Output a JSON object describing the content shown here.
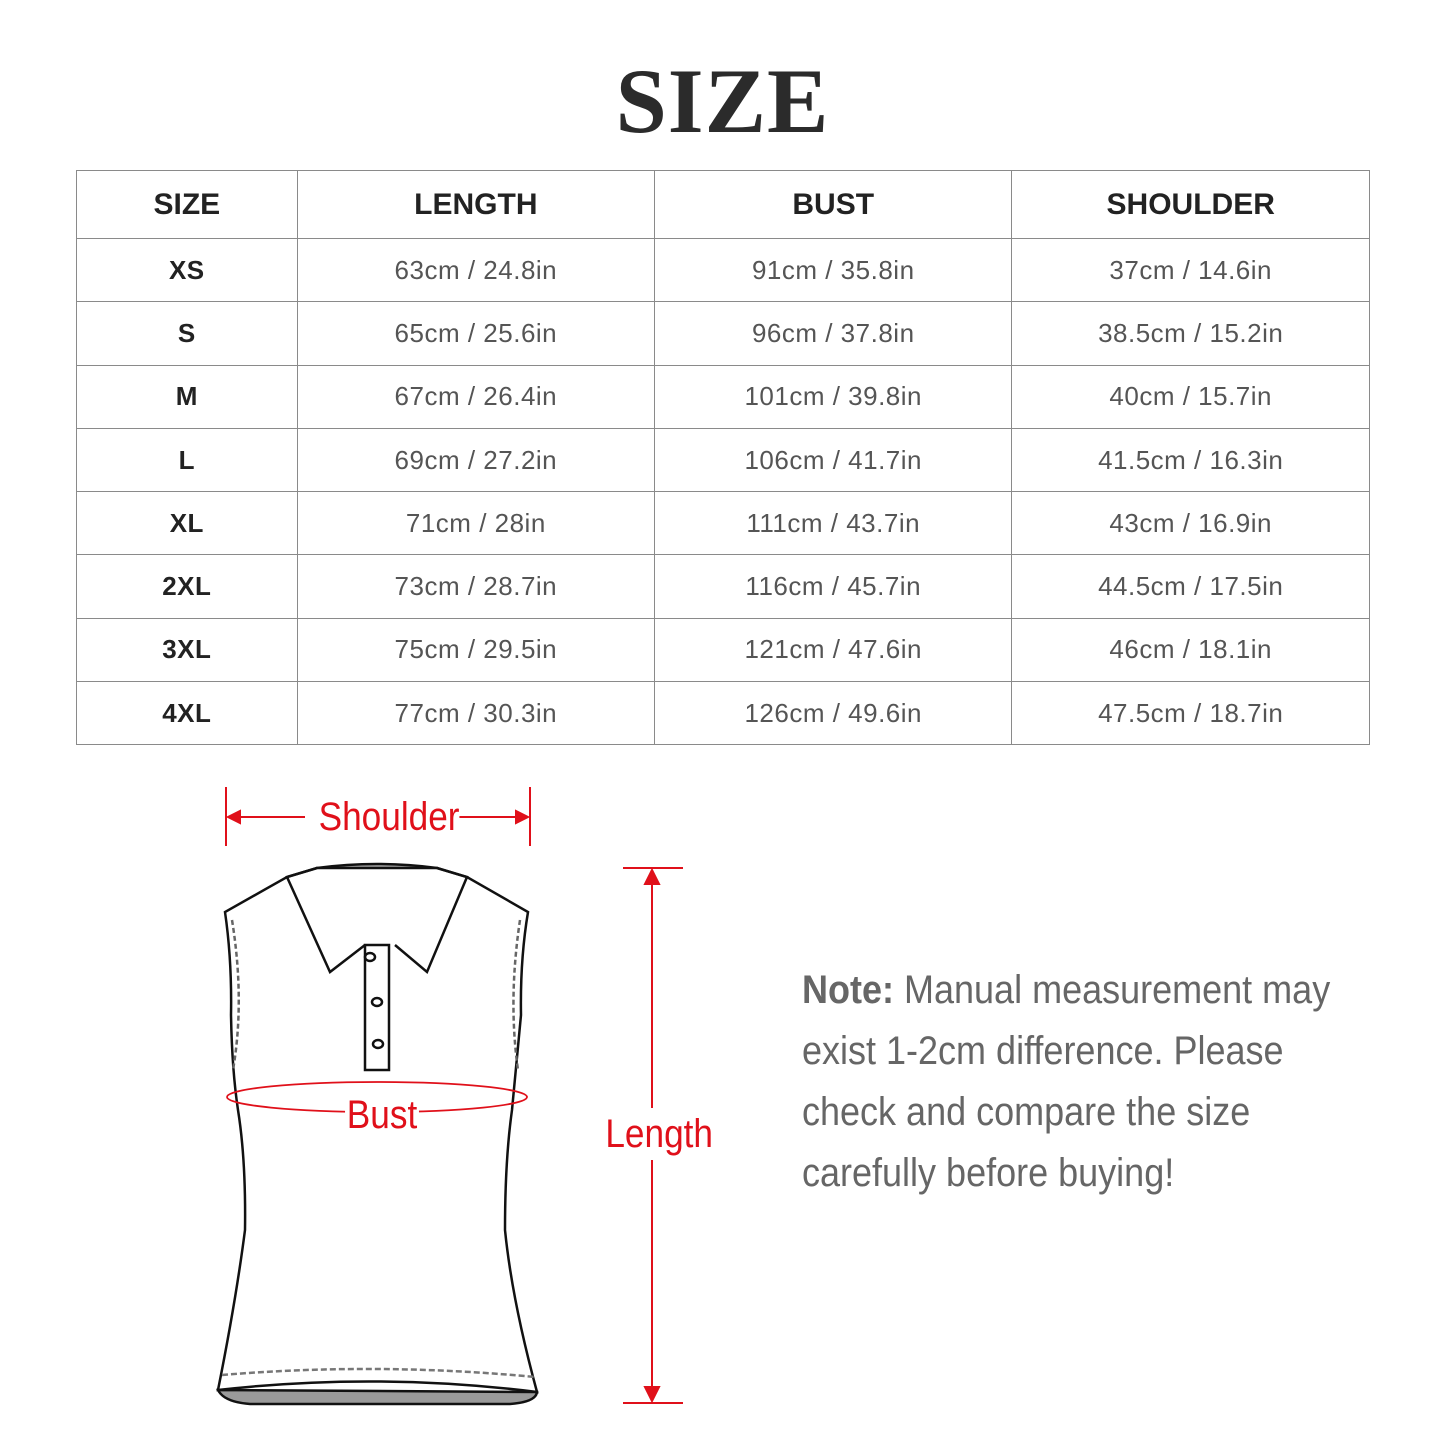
{
  "title": "SIZE",
  "table": {
    "headers": [
      "SIZE",
      "LENGTH",
      "BUST",
      "SHOULDER"
    ],
    "rows": [
      [
        "XS",
        "63cm / 24.8in",
        "91cm / 35.8in",
        "37cm / 14.6in"
      ],
      [
        "S",
        "65cm / 25.6in",
        "96cm / 37.8in",
        "38.5cm / 15.2in"
      ],
      [
        "M",
        "67cm / 26.4in",
        "101cm / 39.8in",
        "40cm / 15.7in"
      ],
      [
        "L",
        "69cm / 27.2in",
        "106cm / 41.7in",
        "41.5cm / 16.3in"
      ],
      [
        "XL",
        "71cm / 28in",
        "111cm / 43.7in",
        "43cm / 16.9in"
      ],
      [
        "2XL",
        "73cm / 28.7in",
        "116cm / 45.7in",
        "44.5cm / 17.5in"
      ],
      [
        "3XL",
        "75cm / 29.5in",
        "121cm / 47.6in",
        "46cm / 18.1in"
      ],
      [
        "4XL",
        "77cm / 30.3in",
        "126cm / 49.6in",
        "47.5cm / 18.7in"
      ]
    ]
  },
  "diagram": {
    "shoulder_label": "Shoulder",
    "bust_label": "Bust",
    "length_label": "Length",
    "accent_color": "#e0101a",
    "icon": "sleeveless-polo-shirt"
  },
  "note": {
    "prefix": "Note:",
    "lines": [
      "Manual measurement may",
      "exist 1-2cm difference. Please",
      "check and compare the size",
      "carefully before buying!"
    ]
  }
}
